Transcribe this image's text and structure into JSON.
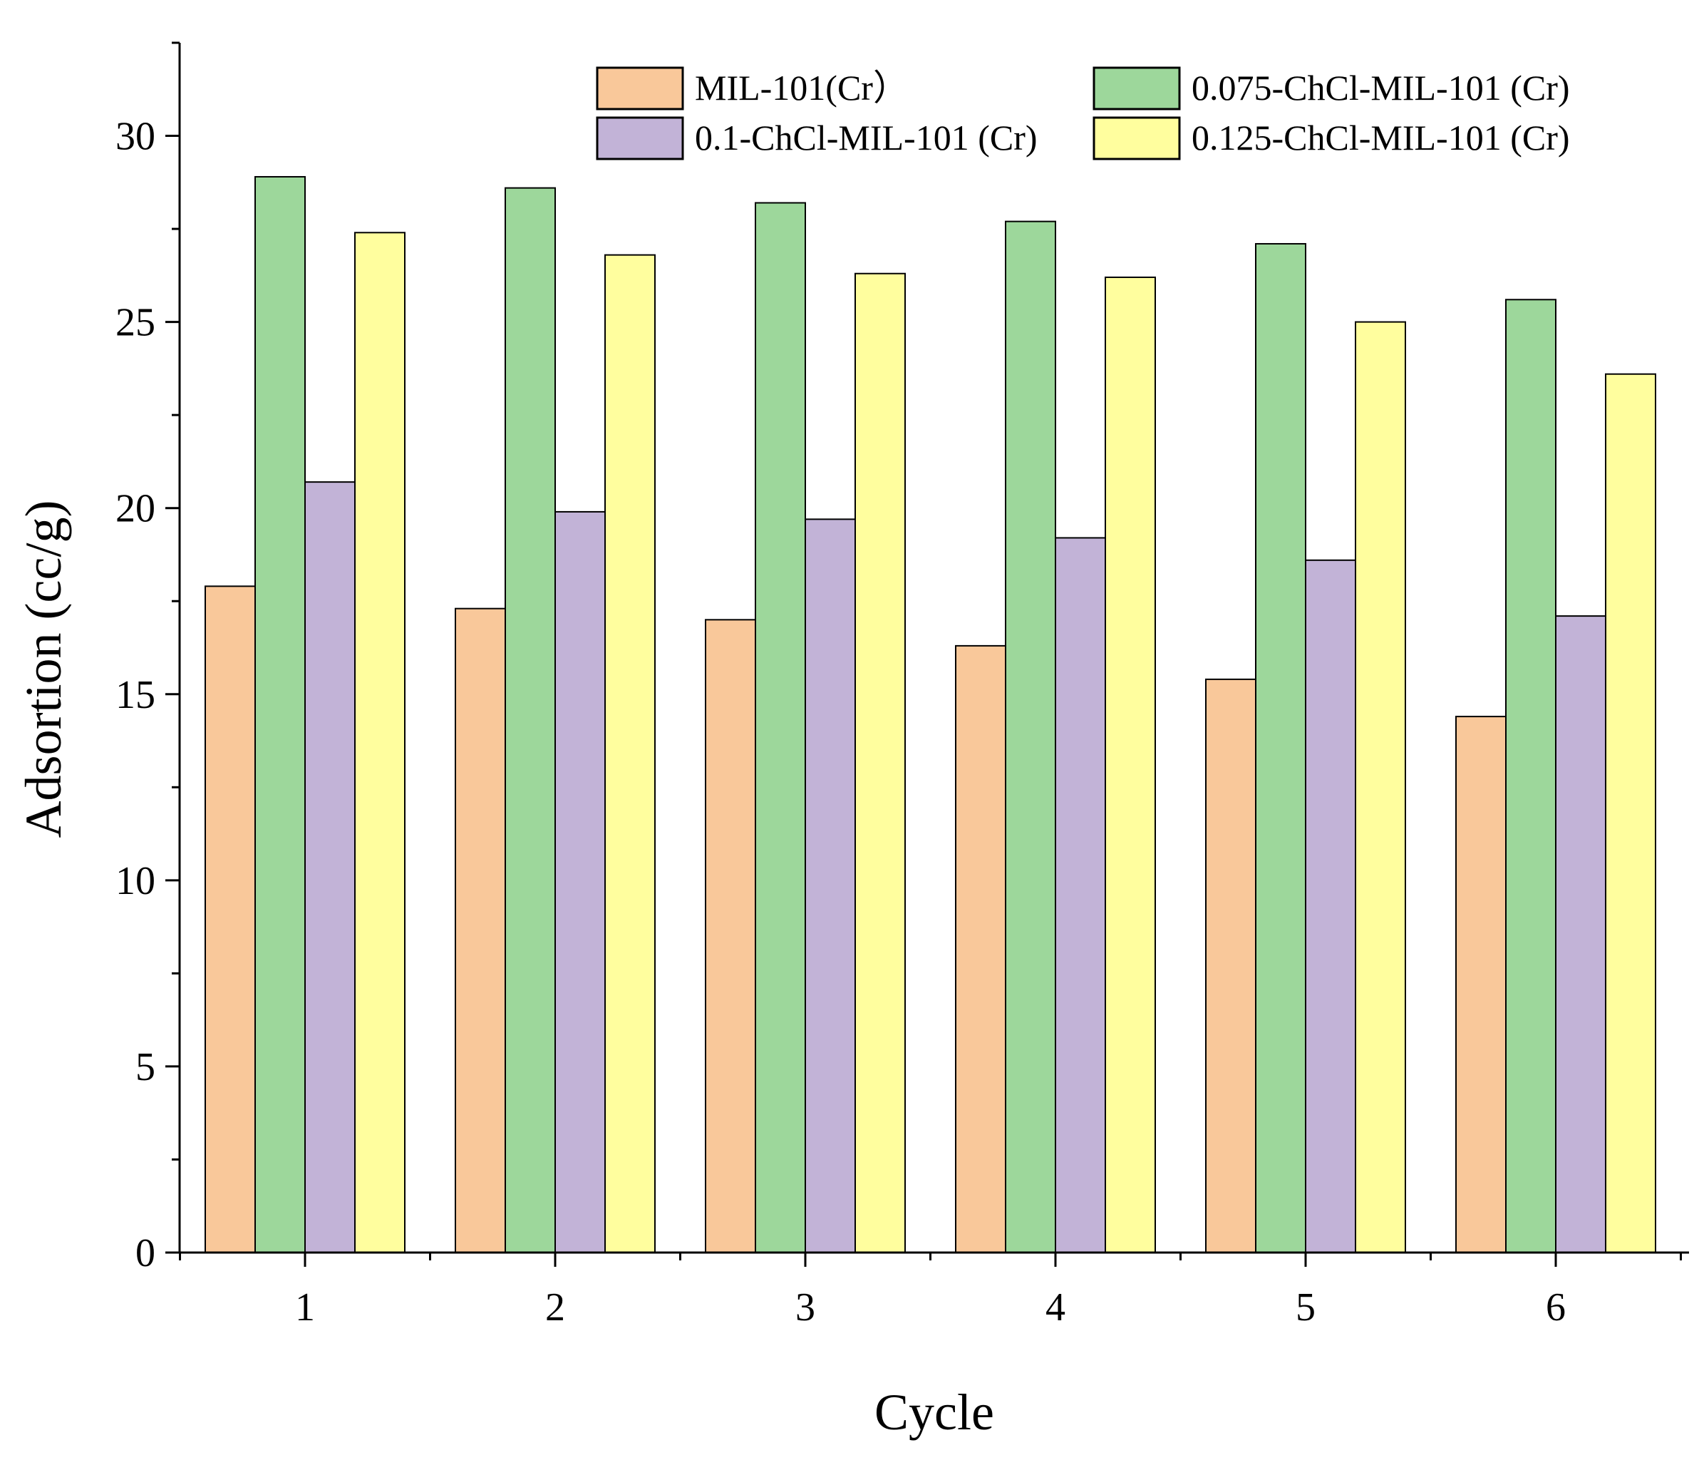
{
  "chart_data": {
    "type": "bar",
    "title": "",
    "xlabel": "Cycle",
    "ylabel": "Adsortion (cc/g)",
    "categories": [
      "1",
      "2",
      "3",
      "4",
      "5",
      "6"
    ],
    "ylim": [
      0,
      32.5
    ],
    "yticks": [
      0,
      5,
      10,
      15,
      20,
      25,
      30
    ],
    "legend_position": "top-right",
    "grid": false,
    "series": [
      {
        "name": "MIL-101(Cr）",
        "color": "#F9C89A",
        "values": [
          17.9,
          17.3,
          17.0,
          16.3,
          15.4,
          14.4
        ]
      },
      {
        "name": "0.075-ChCl-MIL-101 (Cr)",
        "color": "#9DD79B",
        "values": [
          28.9,
          28.6,
          28.2,
          27.7,
          27.1,
          25.6
        ]
      },
      {
        "name": "0.1-ChCl-MIL-101 (Cr)",
        "color": "#C2B3D7",
        "values": [
          20.7,
          19.9,
          19.7,
          19.2,
          18.6,
          17.1
        ]
      },
      {
        "name": "0.125-ChCl-MIL-101 (Cr)",
        "color": "#FFFE9E",
        "values": [
          27.4,
          26.8,
          26.3,
          26.2,
          25.0,
          23.6
        ]
      }
    ]
  }
}
